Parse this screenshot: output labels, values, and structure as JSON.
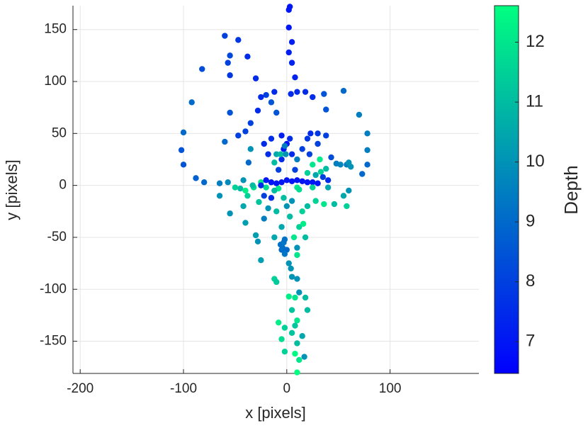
{
  "chart_data": {
    "type": "scatter",
    "xlabel": "x [pixels]",
    "ylabel": "y [pixels]",
    "colorbar_label": "Depth",
    "xlim": [
      -207,
      186
    ],
    "ylim": [
      -181,
      173
    ],
    "xticks": [
      -200,
      -100,
      0,
      100
    ],
    "yticks": [
      -150,
      -100,
      -50,
      0,
      50,
      100,
      150
    ],
    "clim": [
      6.47,
      12.61
    ],
    "cticks": [
      7,
      8,
      9,
      10,
      11,
      12
    ],
    "colormap": [
      "#0000ff",
      "#00ff80"
    ],
    "grid": true,
    "series": [
      {
        "x": [
          3,
          2,
          2,
          5,
          2,
          5,
          8,
          4,
          -60,
          -47,
          -55,
          -38,
          -57,
          -82,
          -55,
          -30,
          -55,
          -92,
          -100,
          -102,
          -100,
          -88,
          -80,
          -65,
          -57,
          -65,
          -55,
          -40,
          -30,
          -28,
          -42,
          -38,
          -27,
          -22,
          -18,
          -25,
          -12,
          -10,
          4,
          10,
          7,
          12,
          16,
          18,
          10,
          2,
          5,
          10,
          12,
          18,
          20,
          2,
          8,
          5,
          10,
          5,
          15,
          -8,
          -2,
          8,
          -5,
          -2,
          8,
          12,
          17,
          10,
          10,
          -5,
          -4,
          -6,
          -3,
          -2,
          0,
          -2,
          55,
          36,
          25,
          18,
          10,
          70,
          38,
          78,
          38,
          30,
          23,
          78,
          78,
          73,
          58,
          52,
          60,
          62,
          43,
          48,
          38,
          33,
          40,
          58,
          46,
          36,
          28,
          60,
          55,
          20,
          15,
          -35,
          -40,
          -47,
          -60,
          -35,
          -37,
          -32,
          -45,
          -50,
          -42,
          -33,
          -25,
          -20,
          -40,
          -28,
          -20,
          -12,
          -15,
          -10,
          -25,
          0,
          -5,
          -10,
          -15,
          -20,
          5,
          10,
          15,
          20,
          25,
          30,
          -25,
          0,
          -3,
          3,
          -5,
          5,
          -8,
          8,
          -10,
          -12,
          -6,
          -2,
          10,
          15,
          22,
          -18,
          -22,
          -15,
          -5,
          20,
          30,
          25,
          10,
          -8,
          -12,
          20,
          25,
          32,
          28,
          -3,
          0,
          3,
          -5,
          -10,
          5,
          -15,
          -22,
          40,
          35,
          -12,
          12,
          -1
        ],
        "y": [
          172,
          169,
          152,
          138,
          128,
          118,
          104,
          88,
          144,
          140,
          125,
          124,
          118,
          112,
          106,
          103,
          70,
          80,
          51,
          34,
          20,
          7,
          3,
          2,
          3,
          -10,
          -27,
          -36,
          -48,
          -54,
          -20,
          -10,
          -16,
          -32,
          -22,
          -72,
          -90,
          -93,
          -80,
          -60,
          -50,
          -40,
          -37,
          -50,
          -67,
          -75,
          -88,
          -90,
          -103,
          -108,
          -120,
          -107,
          -108,
          -120,
          -130,
          -142,
          -145,
          -132,
          -137,
          -135,
          -148,
          -160,
          -162,
          -168,
          -165,
          -152,
          -180,
          -62,
          -60,
          -57,
          -55,
          -52,
          -62,
          -66,
          91,
          88,
          85,
          90,
          90,
          68,
          73,
          50,
          48,
          50,
          50,
          34,
          20,
          11,
          20,
          20,
          22,
          18,
          27,
          21,
          16,
          13,
          -2,
          -20,
          -18,
          -18,
          -15,
          -5,
          -10,
          -20,
          -25,
          60,
          52,
          48,
          42,
          35,
          22,
          -2,
          -3,
          -2,
          5,
          0,
          3,
          -2,
          -5,
          72,
          87,
          90,
          80,
          70,
          85,
          5,
          3,
          2,
          3,
          5,
          4,
          5,
          4,
          3,
          3,
          2,
          0,
          40,
          35,
          45,
          25,
          30,
          15,
          15,
          30,
          22,
          30,
          38,
          25,
          35,
          30,
          30,
          40,
          45,
          48,
          45,
          40,
          -2,
          -2,
          -3,
          -5,
          12,
          20,
          25,
          10,
          -12,
          -20,
          -30,
          -40,
          -25,
          -15,
          -12,
          -10,
          5,
          8,
          -50,
          -4,
          30
        ],
        "depth": [
          7,
          7,
          7,
          7.2,
          7.2,
          7.3,
          7.3,
          7.5,
          8,
          7.8,
          8.2,
          7.5,
          8,
          8.3,
          7.8,
          7.5,
          8.5,
          9,
          9,
          8.5,
          8.5,
          8.8,
          9,
          9.5,
          9.8,
          10,
          10,
          10.3,
          10.3,
          10,
          10.5,
          11.5,
          11.2,
          9.5,
          10,
          10.3,
          11.5,
          11.3,
          10,
          10,
          12,
          11.5,
          12.2,
          11,
          12,
          10,
          10,
          10,
          10,
          11,
          11,
          12.2,
          12,
          11.2,
          12,
          11.2,
          10.5,
          12.2,
          11.5,
          11.2,
          11.8,
          11.5,
          12.5,
          12,
          10,
          11,
          12.6,
          9,
          9.2,
          9.2,
          9.3,
          9.2,
          9,
          9.3,
          9,
          8.5,
          7.5,
          7.5,
          7.5,
          9.5,
          8.5,
          9.5,
          8,
          7.8,
          7.5,
          9.5,
          9,
          9,
          9.5,
          9.7,
          10,
          10,
          8.3,
          9.5,
          11,
          11.5,
          10.5,
          11.5,
          11,
          12,
          11.5,
          10,
          10.5,
          11,
          11.5,
          8,
          8,
          8,
          9,
          10,
          9,
          11.8,
          11,
          11.5,
          10,
          11,
          12,
          11.8,
          12.2,
          7.5,
          8,
          7.5,
          8.5,
          8.5,
          7.5,
          7,
          7,
          7,
          7,
          7,
          7,
          7,
          7,
          7,
          7,
          7,
          7.5,
          7,
          7,
          7.5,
          7.5,
          7.5,
          8,
          8,
          10.5,
          11,
          11,
          9.5,
          9.5,
          8,
          8,
          7.5,
          7.5,
          7.5,
          7.2,
          7.8,
          8,
          11.5,
          12,
          12,
          11,
          11.5,
          12,
          12.2,
          10.5,
          11,
          10,
          11,
          10.5,
          11,
          10,
          7.5,
          8,
          7.5,
          8,
          10.5,
          11.8,
          10
        ]
      }
    ]
  }
}
